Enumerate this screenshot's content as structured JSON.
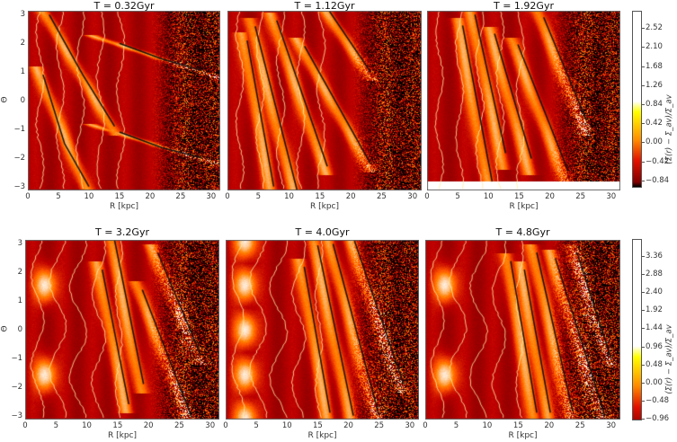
{
  "figure": {
    "rows": [
      {
        "colorbar": {
          "label": "(Σ(r) − Σ_av)/Σ_av",
          "ticks": [
            "2.52",
            "2.10",
            "1.68",
            "1.26",
            "0.84",
            "0.42",
            "0.00",
            "−0.42",
            "−0.84"
          ],
          "tick_values": [
            2.52,
            2.1,
            1.68,
            1.26,
            0.84,
            0.42,
            0.0,
            -0.42,
            -0.84
          ],
          "range": [
            -1.0,
            2.9
          ]
        }
      },
      {
        "colorbar": {
          "label": "(Σ(r) − Σ_av)/Σ_av",
          "ticks": [
            "3.36",
            "2.88",
            "2.40",
            "1.92",
            "1.44",
            "0.96",
            "0.48",
            "0.00",
            "−0.48",
            "−0.96"
          ],
          "tick_values": [
            3.36,
            2.88,
            2.4,
            1.92,
            1.44,
            0.96,
            0.48,
            0.0,
            -0.48,
            -0.96
          ],
          "range": [
            -1.0,
            3.8
          ]
        }
      }
    ],
    "xlabel": "R [kpc]",
    "ylabel": "Θ",
    "xticks": [
      "0",
      "5",
      "10",
      "15",
      "20",
      "25",
      "30"
    ],
    "yticks": [
      "3",
      "2",
      "1",
      "0",
      "−1",
      "−2",
      "−3"
    ]
  },
  "chart_data": [
    {
      "type": "heatmap",
      "title": "T = 0.32Gyr",
      "xlabel": "R [kpc]",
      "ylabel": "Θ",
      "xlim": [
        0,
        31.5
      ],
      "ylim": [
        -3.14,
        3.14
      ],
      "colorbar_ticks": [
        2.52,
        2.1,
        1.68,
        1.26,
        0.84,
        0.42,
        0.0,
        -0.42,
        -0.84
      ],
      "fitted_arms": [
        {
          "r": [
            3.5,
            9,
            14.2
          ],
          "theta": [
            3.0,
            0.9,
            -0.9
          ]
        },
        {
          "r": [
            2.5,
            6,
            10
          ],
          "theta": [
            0.9,
            -1.5,
            -3.0
          ]
        },
        {
          "r": [
            15,
            22,
            28.5
          ],
          "theta": [
            2.0,
            1.45,
            1.05
          ]
        },
        {
          "r": [
            15,
            22,
            28.5
          ],
          "theta": [
            -1.1,
            -1.65,
            -2.0
          ]
        }
      ]
    },
    {
      "type": "heatmap",
      "title": "T = 1.12Gyr",
      "xlabel": "R [kpc]",
      "ylabel": "Θ",
      "xlim": [
        0,
        31.5
      ],
      "ylim": [
        -3.14,
        3.14
      ],
      "fitted_arms": [
        {
          "r": [
            3.2,
            7.5
          ],
          "theta": [
            2.1,
            -3.0
          ]
        },
        {
          "r": [
            4.5,
            11.3
          ],
          "theta": [
            2.6,
            -3.14
          ]
        },
        {
          "r": [
            8,
            16.2
          ],
          "theta": [
            2.8,
            -2.3
          ]
        },
        {
          "r": [
            12.5,
            23.2
          ],
          "theta": [
            1.9,
            -2.2
          ]
        },
        {
          "r": [
            16.5,
            23.2
          ],
          "theta": [
            3.14,
            1.0
          ]
        }
      ]
    },
    {
      "type": "heatmap",
      "title": "T = 1.92Gyr",
      "xlabel": "R [kpc]",
      "ylabel": "Θ",
      "xlim": [
        0,
        31.5
      ],
      "ylim": [
        -3.14,
        3.14
      ],
      "fitted_arms": [
        {
          "r": [
            5.8,
            10.6
          ],
          "theta": [
            2.6,
            -3.14
          ]
        },
        {
          "r": [
            7.8,
            12.8
          ],
          "theta": [
            3.0,
            -2.1
          ]
        },
        {
          "r": [
            11,
            17
          ],
          "theta": [
            2.3,
            -2.3
          ]
        },
        {
          "r": [
            14.8,
            23
          ],
          "theta": [
            1.9,
            -2.75
          ]
        },
        {
          "r": [
            19,
            26
          ],
          "theta": [
            2.9,
            -0.9
          ]
        }
      ]
    },
    {
      "type": "heatmap",
      "title": "T = 3.2Gyr",
      "xlabel": "R [kpc]",
      "ylabel": "Θ",
      "xlim": [
        0,
        31.5
      ],
      "ylim": [
        -3.14,
        3.14
      ],
      "colorbar_ticks": [
        3.36,
        2.88,
        2.4,
        1.92,
        1.44,
        0.96,
        0.48,
        0.0,
        -0.48,
        -0.96
      ],
      "fitted_arms": [
        {
          "r": [
            12.5,
            16.8
          ],
          "theta": [
            2.1,
            -2.6
          ]
        },
        {
          "r": [
            14.5,
            19.2
          ],
          "theta": [
            3.14,
            -1.9
          ]
        },
        {
          "r": [
            19,
            27
          ],
          "theta": [
            1.4,
            -3.05
          ]
        },
        {
          "r": [
            21.5,
            28.5
          ],
          "theta": [
            2.7,
            -0.9
          ]
        }
      ]
    },
    {
      "type": "heatmap",
      "title": "T = 4.0Gyr",
      "xlabel": "R [kpc]",
      "ylabel": "Θ",
      "xlim": [
        0,
        31.5
      ],
      "ylim": [
        -3.14,
        3.14
      ],
      "fitted_arms": [
        {
          "r": [
            12.8,
            17
          ],
          "theta": [
            2.2,
            -2.9
          ]
        },
        {
          "r": [
            15,
            20.8
          ],
          "theta": [
            2.95,
            -3.0
          ]
        },
        {
          "r": [
            17.5,
            25
          ],
          "theta": [
            3.0,
            -3.0
          ]
        },
        {
          "r": [
            21,
            29
          ],
          "theta": [
            3.1,
            -1.9
          ]
        }
      ]
    },
    {
      "type": "heatmap",
      "title": "T = 4.8Gyr",
      "xlabel": "R [kpc]",
      "ylabel": "Θ",
      "xlim": [
        0,
        31.5
      ],
      "ylim": [
        -3.14,
        3.14
      ],
      "fitted_arms": [
        {
          "r": [
            13.8,
            18
          ],
          "theta": [
            2.4,
            -2.9
          ]
        },
        {
          "r": [
            16,
            20.2
          ],
          "theta": [
            2.1,
            -2.9
          ]
        },
        {
          "r": [
            18,
            23.8
          ],
          "theta": [
            2.7,
            -2.85
          ]
        },
        {
          "r": [
            21,
            29
          ],
          "theta": [
            2.5,
            -3.0
          ]
        },
        {
          "r": [
            24.5,
            30
          ],
          "theta": [
            2.7,
            -1.0
          ]
        }
      ]
    }
  ]
}
